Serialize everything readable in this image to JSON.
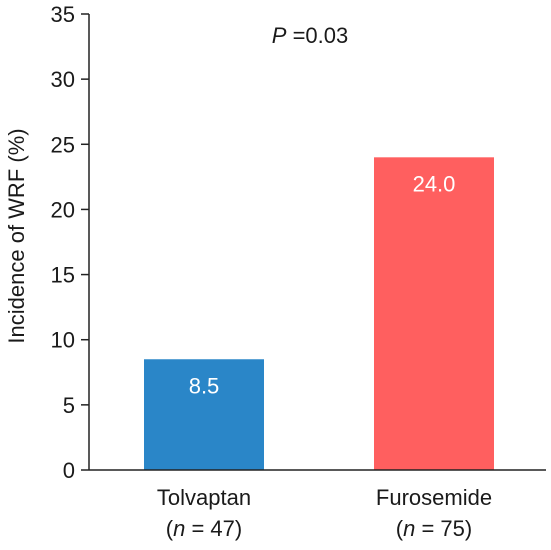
{
  "chart_data": {
    "type": "bar",
    "ylabel": "Incidence of WRF (%)",
    "ylim": [
      0,
      35
    ],
    "yticks": [
      0,
      5,
      10,
      15,
      20,
      25,
      30,
      35
    ],
    "grid": false,
    "legend": "none",
    "annotation": {
      "prefix": "P",
      "text": " =0.03"
    },
    "categories": [
      {
        "name": "Tolvaptan",
        "n_prefix": "(",
        "n_italic": "n",
        "n_suffix": " = 47)"
      },
      {
        "name": "Furosemide",
        "n_prefix": "(",
        "n_italic": "n",
        "n_suffix": " = 75)"
      }
    ],
    "values": [
      8.5,
      24.0
    ],
    "data_labels": [
      "8.5",
      "24.0"
    ],
    "colors": [
      "#2a86c8",
      "#ff5f5f"
    ]
  }
}
